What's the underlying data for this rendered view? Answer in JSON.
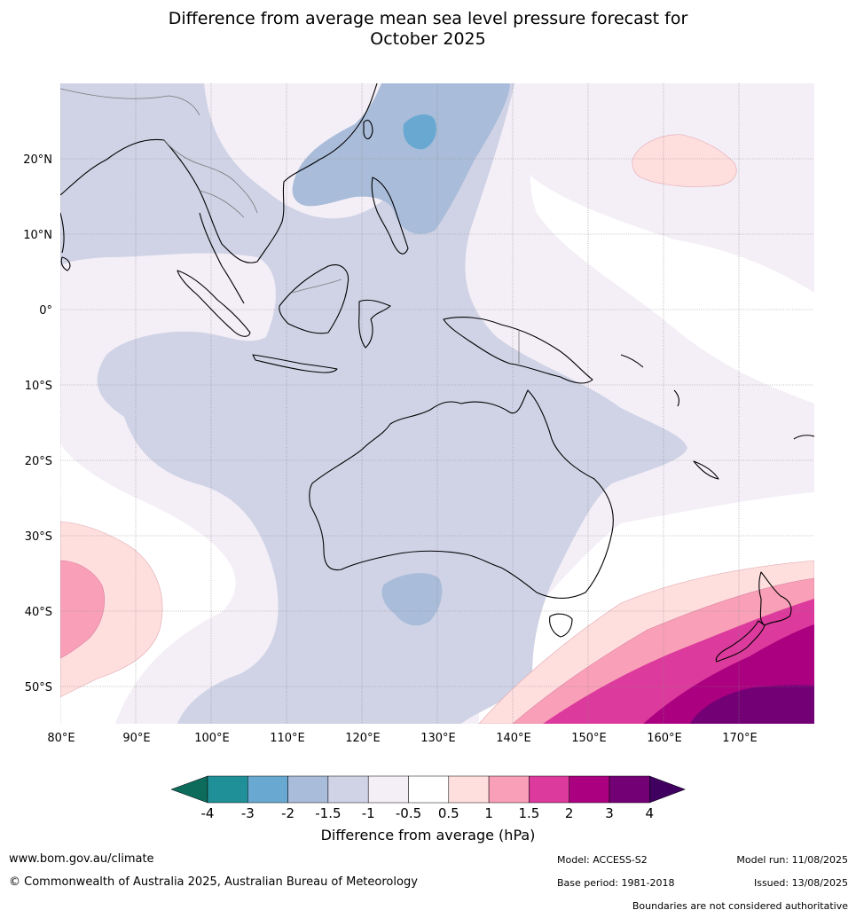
{
  "title": {
    "line1": "Difference from average mean sea level pressure forecast for",
    "line2": "October 2025"
  },
  "map": {
    "lat_labels": [
      "20°N",
      "10°N",
      "0°",
      "10°S",
      "20°S",
      "30°S",
      "40°S",
      "50°S"
    ],
    "lon_labels": [
      "80°E",
      "90°E",
      "100°E",
      "110°E",
      "120°E",
      "130°E",
      "140°E",
      "150°E",
      "160°E",
      "170°E"
    ]
  },
  "colorbar": {
    "ticks": [
      "-4",
      "-3",
      "-2",
      "-1.5",
      "-1",
      "-0.5",
      "0.5",
      "1",
      "1.5",
      "2",
      "3",
      "4"
    ],
    "colors": [
      "#0d6b5c",
      "#1f9097",
      "#69a9d1",
      "#a9bcd9",
      "#d0d3e6",
      "#f4eff7",
      "#ffffff",
      "#ffdede",
      "#f9a0b8",
      "#dc3a9c",
      "#ab0080",
      "#730075",
      "#3f0060"
    ],
    "label": "Difference from average (hPa)"
  },
  "footer": {
    "website": "www.bom.gov.au/climate",
    "copyright": "© Commonwealth of Australia 2025, Australian Bureau of Meteorology",
    "model": "Model: ACCESS-S2",
    "base_period": "Base period: 1981-2018",
    "model_run": "Model run: 11/08/2025",
    "issued": "Issued: 13/08/2025",
    "disclaimer": "Boundaries are not considered authoritative"
  }
}
